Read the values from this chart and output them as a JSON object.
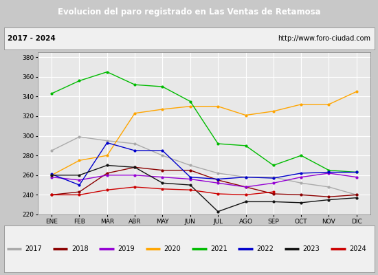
{
  "title": "Evolucion del paro registrado en Las Ventas de Retamosa",
  "subtitle_left": "2017 - 2024",
  "subtitle_right": "http://www.foro-ciudad.com",
  "months": [
    "ENE",
    "FEB",
    "MAR",
    "ABR",
    "MAY",
    "JUN",
    "JUL",
    "AGO",
    "SEP",
    "OCT",
    "NOV",
    "DIC"
  ],
  "ylim": [
    220,
    385
  ],
  "yticks": [
    220,
    240,
    260,
    280,
    300,
    320,
    340,
    360,
    380
  ],
  "series": {
    "2017": {
      "color": "#aaaaaa",
      "values": [
        285,
        299,
        295,
        292,
        280,
        270,
        262,
        258,
        258,
        252,
        248,
        240
      ]
    },
    "2018": {
      "color": "#8b0000",
      "values": [
        240,
        243,
        262,
        268,
        265,
        265,
        255,
        248,
        241,
        240,
        238,
        240
      ]
    },
    "2019": {
      "color": "#9400d3",
      "values": [
        258,
        255,
        260,
        260,
        258,
        256,
        252,
        248,
        252,
        258,
        262,
        258
      ]
    },
    "2020": {
      "color": "#ffa500",
      "values": [
        260,
        275,
        280,
        323,
        327,
        330,
        330,
        321,
        325,
        332,
        332,
        345
      ]
    },
    "2021": {
      "color": "#00bb00",
      "values": [
        343,
        356,
        365,
        352,
        350,
        335,
        292,
        290,
        270,
        280,
        265,
        263
      ]
    },
    "2022": {
      "color": "#0000cc",
      "values": [
        261,
        250,
        293,
        285,
        285,
        258,
        256,
        258,
        257,
        262,
        263,
        263
      ]
    },
    "2023": {
      "color": "#111111",
      "values": [
        260,
        260,
        270,
        268,
        252,
        250,
        223,
        233,
        233,
        232,
        235,
        237
      ]
    },
    "2024": {
      "color": "#cc0000",
      "values": [
        240,
        240,
        245,
        248,
        246,
        245,
        241,
        240,
        243,
        null,
        null,
        null
      ]
    }
  },
  "title_bg_color": "#4472c4",
  "title_fg_color": "#ffffff",
  "plot_bg_color": "#e8e8e8",
  "outer_bg_color": "#c8c8c8",
  "subtitle_bg_color": "#f0f0f0",
  "grid_color": "#ffffff",
  "legend_bg_color": "#f0f0f0"
}
